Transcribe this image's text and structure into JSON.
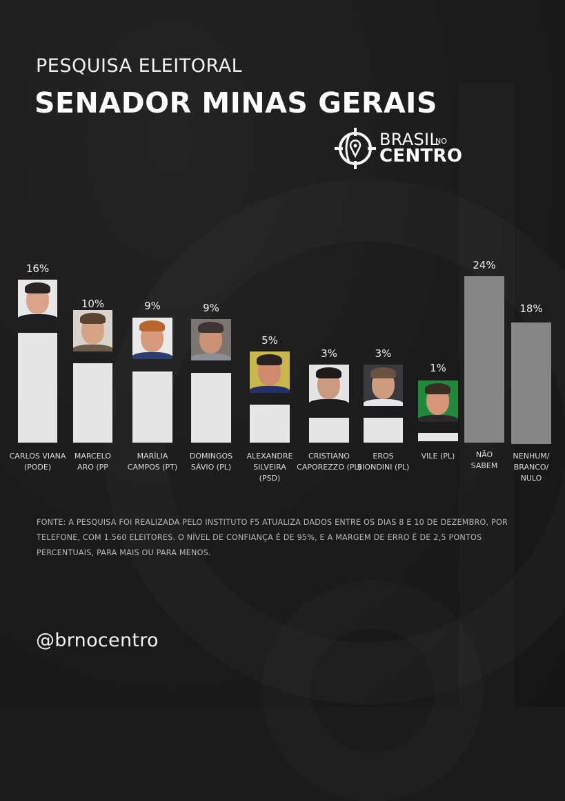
{
  "header": {
    "subtitle": "PESQUISA ELEITORAL",
    "title": "SENADOR MINAS GERAIS"
  },
  "logo": {
    "brasil": "BRASIL",
    "no": "NO",
    "centro": "CENTRO",
    "icon": "crosshair-location-pin-icon"
  },
  "colors": {
    "background": "#1b1b1b",
    "candidate_bar": "#e6e6e6",
    "other_bar": "#868686",
    "text": "#ffffff"
  },
  "chart_data": {
    "type": "bar",
    "title": "SENADOR MINAS GERAIS",
    "subtitle": "PESQUISA ELEITORAL",
    "xlabel": "",
    "ylabel": "",
    "grid": false,
    "legend": "none",
    "unit": "%",
    "categories": [
      "CARLOS VIANA (PODE)",
      "MARCELO ARO (PP",
      "MARÍLIA CAMPOS (PT)",
      "DOMINGOS SÁVIO (PL)",
      "ALEXANDRE SILVEIRA (PSD)",
      "CRISTIANO CAPOREZZO (PL)",
      "EROS BIONDINI (PL)",
      "VILE (PL)",
      "NÃO SABEM",
      "NENHUM/ BRANCO/ NULO"
    ],
    "values": [
      16,
      10,
      9,
      9,
      5,
      3,
      3,
      1,
      24,
      18
    ]
  },
  "bars": [
    {
      "label": "CARLOS VIANA\n(PODE)",
      "value_label": "16%",
      "kind": "cand",
      "photo": true,
      "skin": "#d9a48a",
      "hair": "#2a2422",
      "shirt": "#1e1e28",
      "photo_bg": "#e8e8e8"
    },
    {
      "label": "MARCELO\nARO (PP",
      "value_label": "10%",
      "kind": "cand",
      "photo": true,
      "skin": "#d6a385",
      "hair": "#5a4430",
      "shirt": "#6b5a48",
      "photo_bg": "#d9d4cf"
    },
    {
      "label": "MARÍLIA\nCAMPOS (PT)",
      "value_label": "9%",
      "kind": "cand",
      "photo": true,
      "skin": "#d69a7c",
      "hair": "#b8662e",
      "shirt": "#2c3e6e",
      "photo_bg": "#e9e9e9"
    },
    {
      "label": "DOMINGOS\nSÁVIO (PL)",
      "value_label": "9%",
      "kind": "cand",
      "photo": true,
      "skin": "#c99276",
      "hair": "#3a3534",
      "shirt": "#8a8f98",
      "photo_bg": "#7c7570"
    },
    {
      "label": "ALEXANDRE\nSILVEIRA\n(PSD)",
      "value_label": "5%",
      "kind": "cand",
      "photo": true,
      "skin": "#d08a6e",
      "hair": "#2a2220",
      "shirt": "#24306a",
      "photo_bg": "#c8b84a"
    },
    {
      "label": "CRISTIANO\nCAPOREZZO (PL)",
      "value_label": "3%",
      "kind": "cand",
      "photo": true,
      "skin": "#c99a80",
      "hair": "#1e1a18",
      "shirt": "#1c1c1c",
      "photo_bg": "#e4e4e4"
    },
    {
      "label": "EROS\nBIONDINI (PL)",
      "value_label": "3%",
      "kind": "cand",
      "photo": true,
      "skin": "#cf9c80",
      "hair": "#6a5240",
      "shirt": "#e6e6ea",
      "photo_bg": "#3a3a3e"
    },
    {
      "label": "VILE (PL)",
      "value_label": "1%",
      "kind": "cand",
      "photo": true,
      "skin": "#d49578",
      "hair": "#3a2c22",
      "shirt": "#2a2a2a",
      "photo_bg": "#1f8a3c"
    },
    {
      "label": "NÃO\nSABEM",
      "value_label": "24%",
      "kind": "other",
      "photo": false
    },
    {
      "label": "NENHUM/\nBRANCO/\nNULO",
      "value_label": "18%",
      "kind": "other",
      "photo": false
    }
  ],
  "source_note": "FONTE: A PESQUISA FOI REALIZADA PELO INSTITUTO F5 ATUALIZA DADOS ENTRE OS DIAS 8 E 10 DE DEZEMBRO, POR TELEFONE, COM 1.560 ELEITORES. O NÍVEL DE CONFIANÇA É DE 95%, E A MARGEM DE ERRO É DE 2,5 PONTOS PERCENTUAIS, PARA MAIS OU PARA MENOS.",
  "footer": {
    "handle": "@brnocentro"
  }
}
